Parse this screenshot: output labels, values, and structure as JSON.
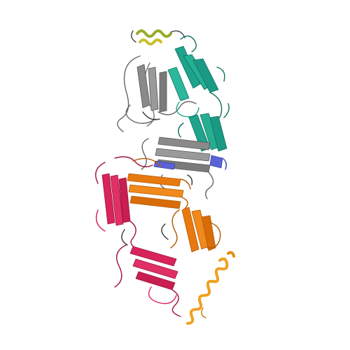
{
  "image": {
    "background": "#ffffff",
    "chains": [
      {
        "name": "chain-teal",
        "color": "#1fa38c",
        "dark": "#0f6f5e"
      },
      {
        "name": "chain-gray",
        "color": "#8a8a8a",
        "dark": "#555555"
      },
      {
        "name": "chain-blue",
        "color": "#5a63d6",
        "dark": "#3b42a8"
      },
      {
        "name": "chain-crimson",
        "color": "#d8245a",
        "dark": "#9e1340"
      },
      {
        "name": "chain-orange",
        "color": "#e8790f",
        "dark": "#b45a05"
      },
      {
        "name": "chain-yellow",
        "color": "#f0a020",
        "dark": "#c07a10"
      },
      {
        "name": "chain-olive",
        "color": "#9aaa28",
        "dark": "#6c7a14"
      }
    ]
  }
}
